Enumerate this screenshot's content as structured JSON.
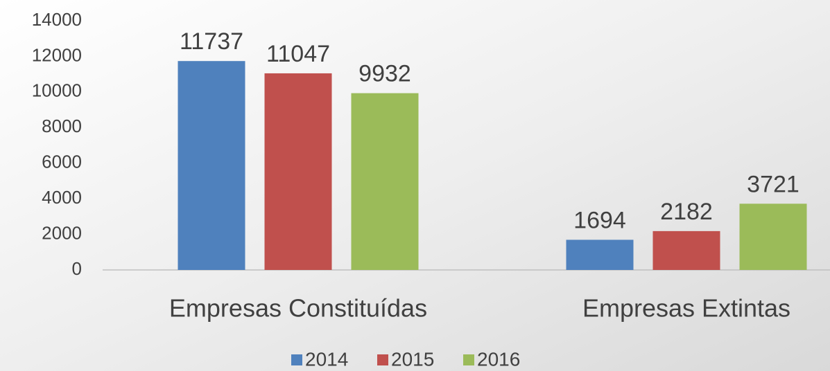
{
  "chart_data": {
    "type": "bar",
    "categories": [
      "Empresas Constituídas",
      "Empresas Extintas"
    ],
    "series": [
      {
        "name": "2014",
        "color": "#4f81bd",
        "values": [
          11737,
          1694
        ]
      },
      {
        "name": "2015",
        "color": "#c0504d",
        "values": [
          11047,
          2182
        ]
      },
      {
        "name": "2016",
        "color": "#9bbb59",
        "values": [
          9932,
          3721
        ]
      }
    ],
    "ylim": [
      0,
      14000
    ],
    "yticks": [
      0,
      2000,
      4000,
      6000,
      8000,
      10000,
      12000,
      14000
    ],
    "grid": false,
    "legend": "bottom"
  }
}
